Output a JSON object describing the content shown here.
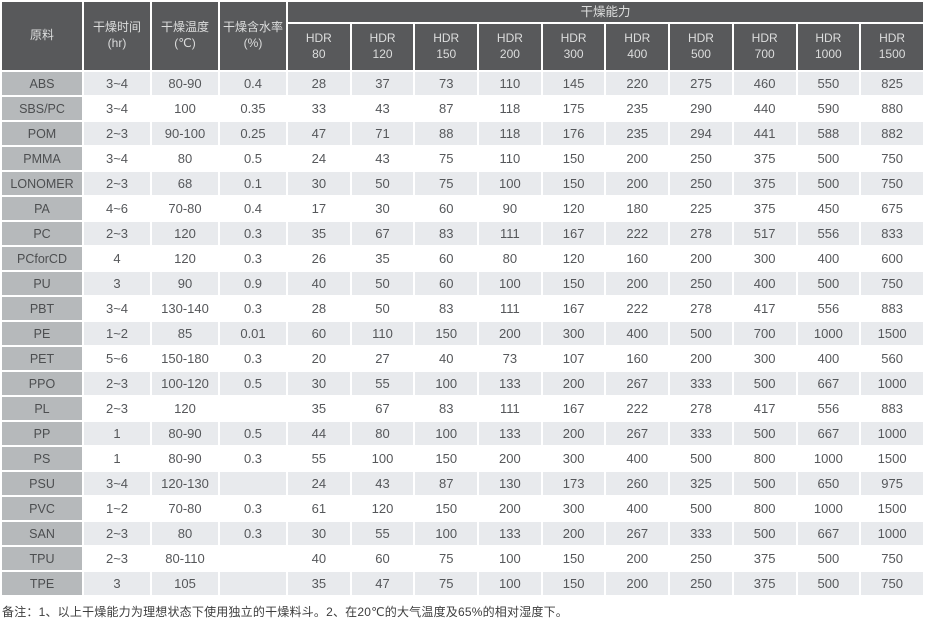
{
  "chart_data": {
    "type": "table",
    "group_header": "干燥能力",
    "capacity_series": "HDR",
    "capacity_models": [
      "80",
      "120",
      "150",
      "200",
      "300",
      "400",
      "500",
      "700",
      "1000",
      "1500"
    ],
    "fixed_columns": [
      {
        "label": "原料",
        "unit": ""
      },
      {
        "label": "干燥时间",
        "unit": "(hr)"
      },
      {
        "label": "干燥温度",
        "unit": "(℃)"
      },
      {
        "label": "干燥含水率",
        "unit": "(%)"
      }
    ],
    "rows": [
      {
        "material": "ABS",
        "time": "3~4",
        "temp": "80-90",
        "moisture": "0.4",
        "capacity": [
          28,
          37,
          73,
          110,
          145,
          220,
          275,
          460,
          550,
          825
        ]
      },
      {
        "material": "SBS/PC",
        "time": "3~4",
        "temp": "100",
        "moisture": "0.35",
        "capacity": [
          33,
          43,
          87,
          118,
          175,
          235,
          290,
          440,
          590,
          880
        ]
      },
      {
        "material": "POM",
        "time": "2~3",
        "temp": "90-100",
        "moisture": "0.25",
        "capacity": [
          47,
          71,
          88,
          118,
          176,
          235,
          294,
          441,
          588,
          882
        ]
      },
      {
        "material": "PMMA",
        "time": "3~4",
        "temp": "80",
        "moisture": "0.5",
        "capacity": [
          24,
          43,
          75,
          110,
          150,
          200,
          250,
          375,
          500,
          750
        ]
      },
      {
        "material": "LONOMER",
        "time": "2~3",
        "temp": "68",
        "moisture": "0.1",
        "capacity": [
          30,
          50,
          75,
          100,
          150,
          200,
          250,
          375,
          500,
          750
        ]
      },
      {
        "material": "PA",
        "time": "4~6",
        "temp": "70-80",
        "moisture": "0.4",
        "capacity": [
          17,
          30,
          60,
          90,
          120,
          180,
          225,
          375,
          450,
          675
        ]
      },
      {
        "material": "PC",
        "time": "2~3",
        "temp": "120",
        "moisture": "0.3",
        "capacity": [
          35,
          67,
          83,
          111,
          167,
          222,
          278,
          517,
          556,
          833
        ]
      },
      {
        "material": "PCforCD",
        "time": "4",
        "temp": "120",
        "moisture": "0.3",
        "capacity": [
          26,
          35,
          60,
          80,
          120,
          160,
          200,
          300,
          400,
          600
        ]
      },
      {
        "material": "PU",
        "time": "3",
        "temp": "90",
        "moisture": "0.9",
        "capacity": [
          40,
          50,
          60,
          100,
          150,
          200,
          250,
          400,
          500,
          750
        ]
      },
      {
        "material": "PBT",
        "time": "3~4",
        "temp": "130-140",
        "moisture": "0.3",
        "capacity": [
          28,
          50,
          83,
          111,
          167,
          222,
          278,
          417,
          556,
          883
        ]
      },
      {
        "material": "PE",
        "time": "1~2",
        "temp": "85",
        "moisture": "0.01",
        "capacity": [
          60,
          110,
          150,
          200,
          300,
          400,
          500,
          700,
          1000,
          1500
        ]
      },
      {
        "material": "PET",
        "time": "5~6",
        "temp": "150-180",
        "moisture": "0.3",
        "capacity": [
          20,
          27,
          40,
          73,
          107,
          160,
          200,
          300,
          400,
          560
        ]
      },
      {
        "material": "PPO",
        "time": "2~3",
        "temp": "100-120",
        "moisture": "0.5",
        "capacity": [
          30,
          55,
          100,
          133,
          200,
          267,
          333,
          500,
          667,
          1000
        ]
      },
      {
        "material": "PL",
        "time": "2~3",
        "temp": "120",
        "moisture": "",
        "capacity": [
          35,
          67,
          83,
          111,
          167,
          222,
          278,
          417,
          556,
          883
        ]
      },
      {
        "material": "PP",
        "time": "1",
        "temp": "80-90",
        "moisture": "0.5",
        "capacity": [
          44,
          80,
          100,
          133,
          200,
          267,
          333,
          500,
          667,
          1000
        ]
      },
      {
        "material": "PS",
        "time": "1",
        "temp": "80-90",
        "moisture": "0.3",
        "capacity": [
          55,
          100,
          150,
          200,
          300,
          400,
          500,
          800,
          1000,
          1500
        ]
      },
      {
        "material": "PSU",
        "time": "3~4",
        "temp": "120-130",
        "moisture": "",
        "capacity": [
          24,
          43,
          87,
          130,
          173,
          260,
          325,
          500,
          650,
          975
        ]
      },
      {
        "material": "PVC",
        "time": "1~2",
        "temp": "70-80",
        "moisture": "0.3",
        "capacity": [
          61,
          120,
          150,
          200,
          300,
          400,
          500,
          800,
          1000,
          1500
        ]
      },
      {
        "material": "SAN",
        "time": "2~3",
        "temp": "80",
        "moisture": "0.3",
        "capacity": [
          30,
          55,
          100,
          133,
          200,
          267,
          333,
          500,
          667,
          1000
        ]
      },
      {
        "material": "TPU",
        "time": "2~3",
        "temp": "80-110",
        "moisture": "",
        "capacity": [
          40,
          60,
          75,
          100,
          150,
          200,
          250,
          375,
          500,
          750
        ]
      },
      {
        "material": "TPE",
        "time": "3",
        "temp": "105",
        "moisture": "",
        "capacity": [
          35,
          47,
          75,
          100,
          150,
          200,
          250,
          375,
          500,
          750
        ]
      }
    ],
    "note": "备注：1、以上干燥能力为理想状态下使用独立的干燥料斗。2、在20℃的大气温度及65%的相对湿度下。",
    "colors": {
      "header_bg": "#58595b",
      "header_text": "#dcdddd",
      "material_col_bg": "#b6b9bb",
      "row_stripe_bg": "#e8eaed",
      "row_plain_bg": "#ffffff",
      "cell_text": "#55575a"
    }
  }
}
